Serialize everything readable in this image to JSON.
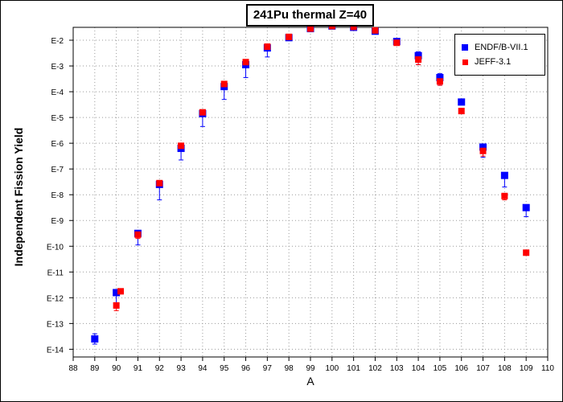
{
  "chart_data": {
    "type": "scatter",
    "title": "241Pu thermal Z=40",
    "xlabel": "A",
    "ylabel": "Independent Fission Yield",
    "xlim": [
      88,
      110
    ],
    "ylim_log10": [
      -14.3,
      -1.5
    ],
    "y_scale": "log",
    "grid": true,
    "legend_position": "top-right",
    "x_ticks": [
      "88",
      "89",
      "90",
      "91",
      "92",
      "93",
      "94",
      "95",
      "96",
      "97",
      "98",
      "99",
      "100",
      "101",
      "102",
      "103",
      "104",
      "105",
      "106",
      "107",
      "108",
      "109",
      "110"
    ],
    "y_ticks": [
      "E-2",
      "E-3",
      "E-4",
      "E-5",
      "E-6",
      "E-7",
      "E-8",
      "E-9",
      "E-10",
      "E-11",
      "E-12",
      "E-13",
      "E-14"
    ],
    "y_tick_values": [
      -2,
      -3,
      -4,
      -5,
      -6,
      -7,
      -8,
      -9,
      -10,
      -11,
      -12,
      -13,
      -14
    ],
    "series": [
      {
        "name": "ENDF/B-VII.1",
        "color": "#0000ff",
        "marker": "square",
        "x": [
          89,
          90,
          91,
          92,
          93,
          94,
          95,
          96,
          97,
          98,
          99,
          100,
          101,
          102,
          103,
          104,
          105,
          106,
          107,
          108,
          109
        ],
        "y": [
          -13.6,
          -11.8,
          -9.5,
          -7.6,
          -6.2,
          -4.85,
          -3.8,
          -2.95,
          -2.3,
          -1.9,
          -1.55,
          -1.45,
          -1.5,
          -1.65,
          -2.05,
          -2.6,
          -3.45,
          -4.4,
          -6.15,
          -7.25,
          -8.5
        ],
        "err_low": [
          0.2,
          0.4,
          0.45,
          0.6,
          0.45,
          0.5,
          0.5,
          0.5,
          0.35,
          0.1,
          0.1,
          0.1,
          0.1,
          0.1,
          0.1,
          0.35,
          0.3,
          0.1,
          0.4,
          0.45,
          0.35
        ],
        "err_high": [
          0.2,
          0.1,
          0.1,
          0.1,
          0.1,
          0.1,
          0.1,
          0.1,
          0.1,
          0.1,
          0.1,
          0.1,
          0.1,
          0.1,
          0.1,
          0.15,
          0.15,
          0.1,
          0.1,
          0.1,
          0.1
        ]
      },
      {
        "name": "JEFF-3.1",
        "color": "#ff0000",
        "marker": "square",
        "x": [
          90,
          90.2,
          91,
          92,
          93,
          94,
          95,
          96,
          97,
          98,
          99,
          100,
          101,
          102,
          103,
          104,
          105,
          106,
          107,
          108,
          109
        ],
        "y": [
          -12.3,
          -11.75,
          -9.55,
          -7.55,
          -6.1,
          -4.8,
          -3.7,
          -2.85,
          -2.25,
          -1.87,
          -1.55,
          -1.45,
          -1.48,
          -1.62,
          -2.1,
          -2.75,
          -3.6,
          -4.75,
          -6.3,
          -8.05,
          -10.25
        ],
        "err_low": [
          0.2,
          0.1,
          0.15,
          0.1,
          0.1,
          0.1,
          0.1,
          0.1,
          0.1,
          0.1,
          0.1,
          0.1,
          0.1,
          0.1,
          0.1,
          0.2,
          0.15,
          0.1,
          0.2,
          0.15,
          0.1
        ],
        "err_high": [
          0.1,
          0.1,
          0.1,
          0.1,
          0.1,
          0.1,
          0.1,
          0.1,
          0.1,
          0.1,
          0.1,
          0.1,
          0.1,
          0.1,
          0.1,
          0.1,
          0.1,
          0.1,
          0.1,
          0.1,
          0.1
        ]
      }
    ]
  }
}
